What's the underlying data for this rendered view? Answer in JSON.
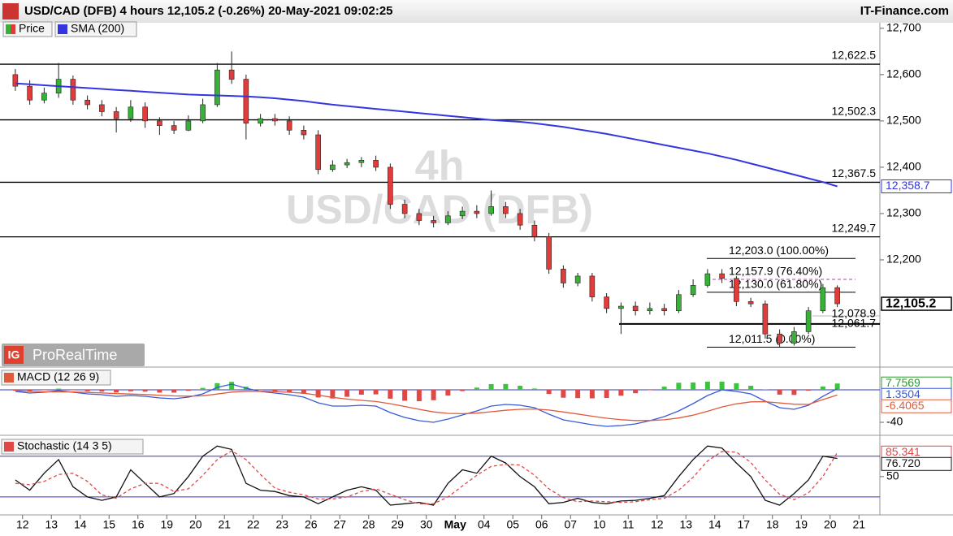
{
  "header": {
    "title": "USD/CAD (DFB) 4 hours 12,105.2 (-0.26%) 20-May-2021 09:02:25",
    "source": "IT-Finance.com",
    "logo": "IG",
    "brand": "ProRealTime",
    "watermark": [
      "4h",
      "USD/CAD (DFB)"
    ]
  },
  "chart_data": [
    {
      "type": "candlestick",
      "categories": [
        "12",
        null,
        "13",
        null,
        "14",
        null,
        "15",
        null,
        "16",
        null,
        "19",
        null,
        "20",
        null,
        "21",
        null,
        "22",
        null,
        "23",
        null,
        "26",
        null,
        "27",
        null,
        "28",
        null,
        "29",
        null,
        "30",
        null,
        "May",
        null,
        "04",
        null,
        "05",
        null,
        "06",
        null,
        "07",
        null,
        "10",
        null,
        "11",
        null,
        "12",
        null,
        "13",
        null,
        "14",
        null,
        "17",
        null,
        "18",
        null,
        "19",
        null,
        "20",
        null,
        "21",
        null
      ],
      "series": [
        {
          "name": "Price",
          "up_color": "#36b336",
          "down_color": "#e03c3c",
          "last_label": "12,105.2",
          "open": [
            12600,
            12575,
            12545,
            12560,
            12590,
            12545,
            12535,
            12520,
            12505,
            12530,
            12500,
            12490,
            12480,
            12500,
            12535,
            12610,
            12590,
            12495,
            12505,
            12500,
            12480,
            12470,
            12395,
            12405,
            12410,
            12415,
            12400,
            12320,
            12300,
            12285,
            12280,
            12295,
            12305,
            12300,
            12315,
            12300,
            12275,
            12250,
            12180,
            12150,
            12165,
            12120,
            12095,
            12100,
            12090,
            12095,
            12090,
            12125,
            12145,
            12170,
            12160,
            12110,
            12105,
            12040,
            12020,
            12045,
            12090,
            12140,
            null,
            null
          ],
          "high": [
            12612,
            12588,
            12572,
            12625,
            12598,
            12555,
            12545,
            12530,
            12545,
            12540,
            12508,
            12500,
            12512,
            12548,
            12625,
            12650,
            12600,
            12515,
            12515,
            12510,
            12490,
            12480,
            12415,
            12418,
            12422,
            12425,
            12408,
            12330,
            12310,
            12295,
            12305,
            12315,
            12318,
            12350,
            12325,
            12310,
            12285,
            12258,
            12188,
            12172,
            12172,
            12128,
            12108,
            12110,
            12108,
            12105,
            12135,
            12158,
            12180,
            12180,
            12165,
            12118,
            12112,
            12050,
            12055,
            12098,
            12148,
            12145,
            null,
            null
          ],
          "low": [
            12565,
            12535,
            12538,
            12550,
            12535,
            12525,
            12510,
            12475,
            12498,
            12485,
            12470,
            12472,
            12478,
            12495,
            12530,
            12580,
            12460,
            12488,
            12490,
            12470,
            12460,
            12385,
            12390,
            12398,
            12400,
            12392,
            12310,
            12290,
            12275,
            12270,
            12275,
            12288,
            12290,
            12295,
            12290,
            12265,
            12240,
            12170,
            12140,
            12143,
            12110,
            12085,
            12040,
            12080,
            12082,
            12080,
            12085,
            12120,
            12140,
            12150,
            12100,
            12098,
            12030,
            12011.5,
            12015,
            12040,
            12085,
            12098,
            null,
            null
          ],
          "close": [
            12575,
            12545,
            12560,
            12590,
            12545,
            12535,
            12520,
            12505,
            12530,
            12500,
            12490,
            12480,
            12500,
            12535,
            12610,
            12590,
            12495,
            12505,
            12500,
            12480,
            12470,
            12395,
            12405,
            12410,
            12415,
            12400,
            12320,
            12300,
            12285,
            12280,
            12295,
            12305,
            12300,
            12315,
            12300,
            12275,
            12250,
            12180,
            12150,
            12165,
            12120,
            12095,
            12100,
            12090,
            12095,
            12090,
            12125,
            12145,
            12170,
            12160,
            12110,
            12105,
            12040,
            12020,
            12045,
            12090,
            12140,
            12105.2,
            null,
            null
          ]
        },
        {
          "name": "SMA (200)",
          "color": "#3535e0",
          "last_label": "12,358.7",
          "values": [
            12581,
            12579,
            12577,
            12575,
            12573,
            12571,
            12569,
            12567,
            12565,
            12563,
            12561,
            12559,
            12557,
            12556,
            12555,
            12554,
            12553,
            12551,
            12549,
            12546,
            12543,
            12539,
            12535,
            12532,
            12529,
            12526,
            12523,
            12520,
            12517,
            12514,
            12511,
            12508,
            12505,
            12502,
            12500,
            12498,
            12495,
            12491,
            12487,
            12482,
            12477,
            12472,
            12466,
            12460,
            12454,
            12448,
            12442,
            12436,
            12430,
            12423,
            12416,
            12408,
            12400,
            12392,
            12384,
            12376,
            12368,
            12358.7,
            null,
            null
          ]
        }
      ],
      "ylim": [
        11972,
        12712
      ],
      "yticks": [
        {
          "value": 12700,
          "label": "12,700"
        },
        {
          "value": 12600,
          "label": "12,600"
        },
        {
          "value": 12500,
          "label": "12,500"
        },
        {
          "value": 12400,
          "label": "12,400"
        },
        {
          "value": 12300,
          "label": "12,300"
        },
        {
          "value": 12200,
          "label": "12,200"
        }
      ],
      "levels": [
        {
          "value": 12622.5,
          "label": "12,622.5"
        },
        {
          "value": 12502.3,
          "label": "12,502.3"
        },
        {
          "value": 12367.5,
          "label": "12,367.5"
        },
        {
          "value": 12249.7,
          "label": "12,249.7"
        }
      ],
      "fib": [
        {
          "value": 12203.0,
          "label": "12,203.0 (100.00%)"
        },
        {
          "value": 12157.9,
          "label": "12,157.9 (76.40%)",
          "color": "#b040b0",
          "style": "dashed"
        },
        {
          "value": 12130.0,
          "label": "12,130.0 (61.80%)"
        },
        {
          "value": 12011.5,
          "label": "12,011.5 (0.00%)"
        }
      ],
      "supports": [
        {
          "value": 12078.9,
          "label": "12,078.9"
        },
        {
          "value": 12061.7,
          "label": "12,061.7"
        }
      ]
    },
    {
      "type": "macd",
      "title": "MACD (12 26 9)",
      "series": [
        {
          "kind": "histogram",
          "up_color": "#3cc43c",
          "down_color": "#e04848",
          "color": "#2a9a2a",
          "last_label": "7.7569",
          "values": [
            -1,
            -2,
            -0.5,
            1.5,
            -0.4,
            -1.8,
            -2.2,
            -3.3,
            -1.8,
            -2.2,
            -3.4,
            -3.5,
            -1.2,
            2.3,
            8.2,
            9.8,
            3.8,
            -0.2,
            -1.8,
            -3,
            -4.8,
            -9.4,
            -10.7,
            -8.6,
            -6,
            -5.6,
            -10.9,
            -13.5,
            -14,
            -12.8,
            -7,
            -1.6,
            2.7,
            7,
            7.2,
            5,
            1.6,
            -5.1,
            -9.7,
            -10.2,
            -10.5,
            -10,
            -7.2,
            -4.2,
            -0.2,
            3.9,
            8.7,
            9,
            10,
            10,
            8,
            5,
            0.6,
            -5.9,
            -6.3,
            -1,
            4,
            7.7569,
            null,
            null
          ]
        },
        {
          "kind": "line",
          "color": "#3a5ad8",
          "last_label": "1.3504",
          "values": [
            -2,
            -4,
            -3,
            -1,
            -3,
            -5,
            -6,
            -8,
            -7,
            -8,
            -10,
            -11,
            -9,
            -5,
            3,
            7,
            2,
            -2,
            -4,
            -6,
            -9,
            -16,
            -20,
            -20,
            -19,
            -20,
            -28,
            -34,
            -38,
            -40,
            -36,
            -31,
            -26,
            -20,
            -18,
            -19,
            -22,
            -30,
            -37,
            -40,
            -43,
            -45,
            -44,
            -42,
            -38,
            -33,
            -26,
            -17,
            -7,
            0,
            -2,
            -5,
            -14,
            -22,
            -24,
            -19,
            -8,
            1.3504,
            null,
            null
          ]
        },
        {
          "kind": "line",
          "color": "#e05a3a",
          "last_label": "-6.4065",
          "values": [
            -1,
            -2,
            -2.5,
            -2.5,
            -2.6,
            -3.2,
            -3.8,
            -4.7,
            -5.2,
            -5.8,
            -6.6,
            -7.5,
            -7.8,
            -7.3,
            -5.2,
            -2.8,
            -1.8,
            -1.8,
            -2.2,
            -3,
            -4.2,
            -6.6,
            -9.3,
            -11.4,
            -13,
            -14.4,
            -17.1,
            -20.5,
            -24,
            -27.2,
            -29,
            -29.4,
            -28.7,
            -27,
            -25.2,
            -24,
            -23.6,
            -24.9,
            -27.3,
            -29.8,
            -32.5,
            -35,
            -36.8,
            -37.8,
            -37.8,
            -36.9,
            -34.7,
            -31.2,
            -26.4,
            -21.1,
            -17.3,
            -14.8,
            -14.6,
            -16.1,
            -17.7,
            -18,
            -12,
            -6.4065,
            null,
            null
          ]
        }
      ],
      "ylim": [
        -52,
        25
      ],
      "yticks": [
        -40
      ],
      "levels": [
        0
      ]
    },
    {
      "type": "stochastic",
      "title": "Stochastic (14 3 5)",
      "series": [
        {
          "kind": "line",
          "color": "#111111",
          "last_label": "76.720",
          "values": [
            45,
            30,
            55,
            75,
            35,
            20,
            15,
            20,
            60,
            40,
            20,
            25,
            50,
            80,
            95,
            90,
            40,
            30,
            28,
            22,
            20,
            10,
            20,
            30,
            35,
            30,
            8,
            10,
            12,
            8,
            40,
            60,
            55,
            80,
            70,
            50,
            35,
            10,
            12,
            18,
            12,
            10,
            14,
            15,
            18,
            22,
            50,
            75,
            95,
            92,
            70,
            50,
            15,
            8,
            25,
            45,
            80,
            76.72,
            null,
            null
          ]
        },
        {
          "kind": "line",
          "color": "#e04848",
          "style": "dashed",
          "last_label": "85.341",
          "values": [
            40,
            38,
            43,
            53,
            55,
            43,
            23,
            18,
            32,
            40,
            40,
            28,
            32,
            52,
            75,
            88,
            75,
            53,
            33,
            27,
            23,
            17,
            17,
            20,
            28,
            32,
            24,
            16,
            10,
            10,
            20,
            36,
            52,
            65,
            68,
            67,
            52,
            32,
            19,
            13,
            14,
            13,
            12,
            13,
            16,
            18,
            30,
            49,
            73,
            87,
            86,
            71,
            45,
            24,
            16,
            26,
            50,
            85.341,
            null,
            null
          ]
        }
      ],
      "ylim": [
        -4,
        106
      ],
      "yticks": [
        50
      ],
      "levels": [
        80,
        20
      ]
    }
  ]
}
